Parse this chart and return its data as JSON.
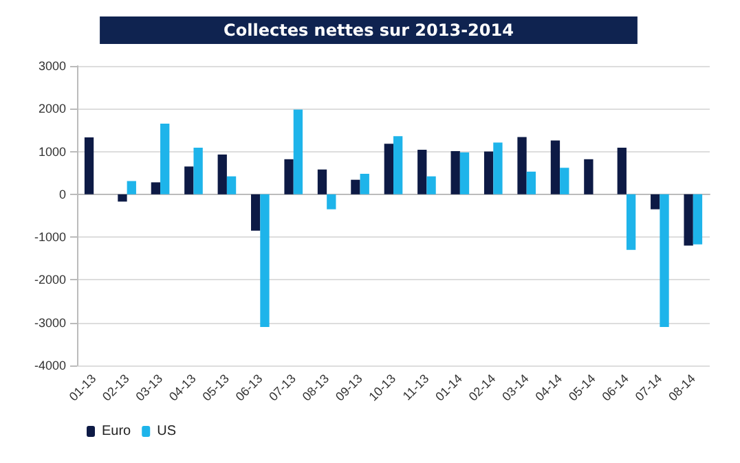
{
  "chart_data": {
    "type": "bar",
    "title": "Collectes nettes sur 2013-2014",
    "categories": [
      "01-13",
      "02-13",
      "03-13",
      "04-13",
      "05-13",
      "06-13",
      "07-13",
      "08-13",
      "09-13",
      "10-13",
      "11-13",
      "01-14",
      "02-14",
      "03-14",
      "04-14",
      "05-14",
      "06-14",
      "07-14",
      "08-14"
    ],
    "series": [
      {
        "name": "Euro",
        "color": "#0d1a45",
        "values": [
          1330,
          -170,
          280,
          650,
          930,
          -850,
          820,
          580,
          340,
          1180,
          1040,
          1010,
          1000,
          1340,
          1260,
          820,
          1090,
          -350,
          -1200
        ]
      },
      {
        "name": "US",
        "color": "#1eb4ea",
        "values": [
          0,
          310,
          1650,
          1090,
          420,
          -3100,
          1980,
          -350,
          480,
          1360,
          420,
          980,
          1210,
          530,
          620,
          0,
          -1300,
          -3100,
          -1170
        ]
      }
    ],
    "ylim": [
      -4000,
      3000
    ],
    "yticks": [
      -4000,
      -3000,
      -2000,
      -1000,
      0,
      1000,
      2000,
      3000
    ],
    "grid": "y",
    "legend": "bottom left"
  }
}
